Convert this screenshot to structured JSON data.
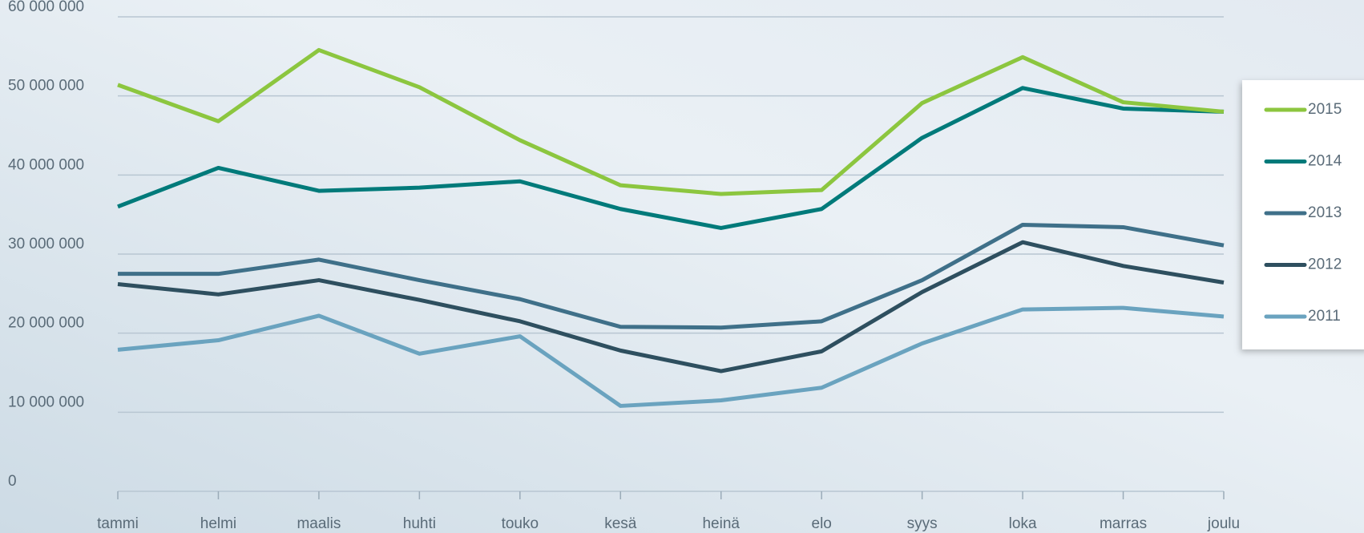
{
  "chart_data": {
    "type": "line",
    "categories": [
      "tammi",
      "helmi",
      "maalis",
      "huhti",
      "touko",
      "kesä",
      "heinä",
      "elo",
      "syys",
      "loka",
      "marras",
      "joulu"
    ],
    "series": [
      {
        "name": "2015",
        "color": "#8cc63f",
        "values": [
          51400000,
          46800000,
          55800000,
          51100000,
          44400000,
          38700000,
          37600000,
          38100000,
          49100000,
          54900000,
          49200000,
          48000000
        ]
      },
      {
        "name": "2014",
        "color": "#007a7a",
        "values": [
          36000000,
          40900000,
          38000000,
          38400000,
          39200000,
          35700000,
          33300000,
          35700000,
          44700000,
          51000000,
          48400000,
          48000000
        ]
      },
      {
        "name": "2013",
        "color": "#3f7089",
        "values": [
          27500000,
          27500000,
          29300000,
          26700000,
          24300000,
          20800000,
          20700000,
          21500000,
          26700000,
          33700000,
          33400000,
          31100000
        ]
      },
      {
        "name": "2012",
        "color": "#2e4f5f",
        "values": [
          26200000,
          24900000,
          26700000,
          24200000,
          21500000,
          17800000,
          15200000,
          17700000,
          25200000,
          31500000,
          28500000,
          26400000
        ]
      },
      {
        "name": "2011",
        "color": "#6aa3bf",
        "values": [
          17900000,
          19100000,
          22200000,
          17400000,
          19600000,
          10800000,
          11500000,
          13100000,
          18700000,
          23000000,
          23200000,
          22100000
        ]
      }
    ],
    "ylim": [
      0,
      60000000
    ],
    "yticks": [
      0,
      {
        "value": 10000000,
        "label": "10 000 000"
      },
      {
        "value": 20000000,
        "label": "20 000 000"
      },
      {
        "value": 30000000,
        "label": "30 000 000"
      },
      {
        "value": 40000000,
        "label": "40 000 000"
      },
      {
        "value": 50000000,
        "label": "50 000 000"
      },
      {
        "value": 60000000,
        "label": "60 000 000"
      }
    ],
    "grid": true,
    "legend": "right"
  }
}
